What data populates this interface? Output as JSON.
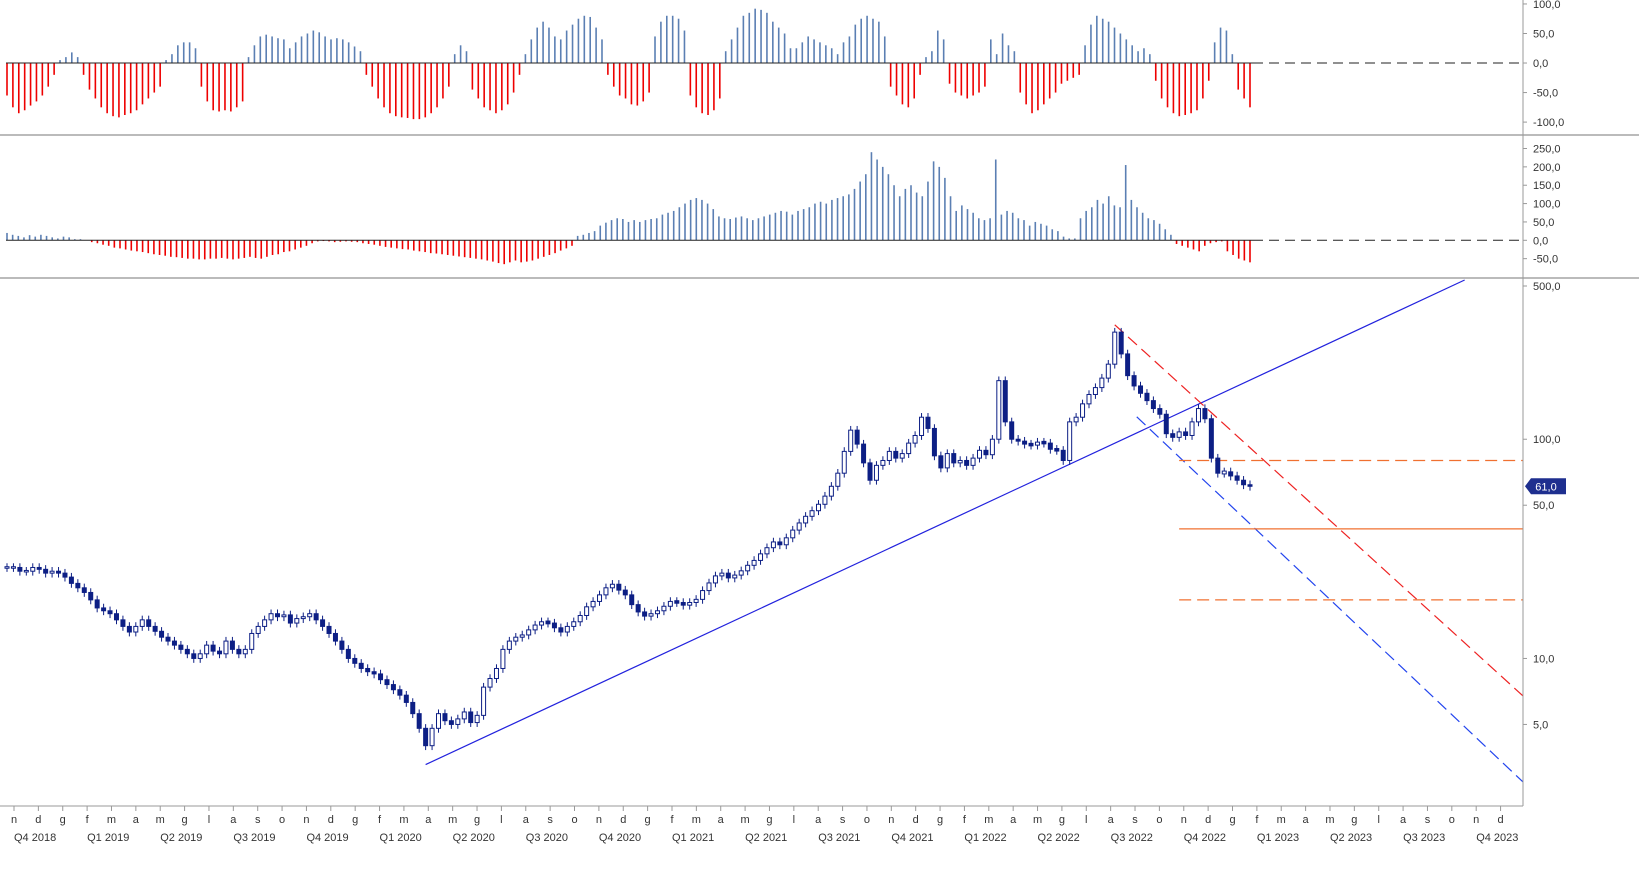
{
  "chart_data": [
    {
      "type": "bar",
      "panel": "oscillator-top",
      "y_ticks": [
        "100,0",
        "50,0",
        "0,0",
        "-50,0",
        "-100,0"
      ],
      "y_tick_values": [
        100,
        50,
        0,
        -50,
        -100
      ],
      "ylim": [
        -110,
        105
      ],
      "colors": {
        "positive": "#5b7fb3",
        "negative": "#ee0000"
      },
      "values": [
        -55,
        -75,
        -85,
        -80,
        -72,
        -65,
        -55,
        -40,
        -20,
        5,
        10,
        18,
        10,
        -20,
        -45,
        -60,
        -75,
        -85,
        -90,
        -92,
        -88,
        -85,
        -80,
        -70,
        -60,
        -50,
        -40,
        5,
        15,
        30,
        35,
        35,
        25,
        -40,
        -65,
        -80,
        -82,
        -80,
        -82,
        -75,
        -65,
        10,
        30,
        45,
        48,
        45,
        42,
        40,
        25,
        35,
        45,
        50,
        55,
        52,
        45,
        40,
        42,
        40,
        35,
        28,
        20,
        -20,
        -40,
        -60,
        -75,
        -85,
        -90,
        -92,
        -93,
        -95,
        -95,
        -92,
        -85,
        -75,
        -60,
        -40,
        15,
        30,
        20,
        -45,
        -60,
        -75,
        -80,
        -85,
        -80,
        -70,
        -50,
        -20,
        15,
        40,
        60,
        70,
        60,
        45,
        40,
        55,
        65,
        75,
        80,
        78,
        60,
        40,
        -20,
        -40,
        -55,
        -60,
        -70,
        -72,
        -65,
        -50,
        45,
        70,
        80,
        80,
        75,
        55,
        -55,
        -75,
        -85,
        -88,
        -80,
        -60,
        20,
        40,
        60,
        80,
        85,
        92,
        90,
        85,
        70,
        60,
        50,
        25,
        25,
        35,
        45,
        40,
        35,
        30,
        25,
        15,
        35,
        45,
        65,
        75,
        80,
        75,
        70,
        45,
        -40,
        -55,
        -70,
        -75,
        -60,
        -20,
        10,
        20,
        55,
        40,
        -35,
        -50,
        -55,
        -60,
        -55,
        -50,
        -40,
        40,
        15,
        50,
        30,
        20,
        -50,
        -70,
        -85,
        -80,
        -70,
        -60,
        -50,
        -35,
        -30,
        -25,
        -20,
        30,
        65,
        80,
        75,
        70,
        60,
        50,
        40,
        30,
        20,
        25,
        15,
        -30,
        -60,
        -75,
        -85,
        -90,
        -88,
        -85,
        -80,
        -60,
        -30,
        35,
        60,
        55,
        15,
        -45,
        -60,
        -75
      ],
      "reference_line": 0
    },
    {
      "type": "bar",
      "panel": "oscillator-middle",
      "y_ticks": [
        "250,0",
        "200,0",
        "150,0",
        "100,0",
        "50,0",
        "0,0",
        "-50,0"
      ],
      "y_tick_values": [
        250,
        200,
        150,
        100,
        50,
        0,
        -50
      ],
      "ylim": [
        -70,
        265
      ],
      "colors": {
        "positive": "#5b7fb3",
        "negative": "#ee0000"
      },
      "values": [
        20,
        15,
        12,
        8,
        14,
        10,
        15,
        12,
        8,
        5,
        10,
        8,
        3,
        3,
        0,
        -5,
        -8,
        -12,
        -15,
        -20,
        -22,
        -25,
        -28,
        -30,
        -32,
        -35,
        -38,
        -40,
        -42,
        -45,
        -46,
        -48,
        -50,
        -50,
        -52,
        -52,
        -50,
        -50,
        -48,
        -50,
        -52,
        -50,
        -48,
        -45,
        -48,
        -50,
        -45,
        -40,
        -38,
        -32,
        -30,
        -25,
        -20,
        -15,
        -8,
        -3,
        -2,
        -3,
        -5,
        -4,
        -3,
        -4,
        -5,
        -8,
        -10,
        -12,
        -15,
        -18,
        -20,
        -22,
        -24,
        -25,
        -28,
        -30,
        -32,
        -35,
        -36,
        -38,
        -40,
        -42,
        -44,
        -46,
        -48,
        -50,
        -52,
        -55,
        -58,
        -62,
        -65,
        -60,
        -55,
        -60,
        -58,
        -55,
        -50,
        -45,
        -40,
        -35,
        -28,
        -22,
        -15,
        12,
        15,
        20,
        25,
        40,
        48,
        55,
        60,
        58,
        50,
        55,
        50,
        55,
        58,
        60,
        70,
        75,
        80,
        90,
        100,
        110,
        115,
        110,
        100,
        85,
        65,
        60,
        58,
        62,
        65,
        60,
        55,
        60,
        65,
        70,
        75,
        80,
        78,
        70,
        80,
        85,
        90,
        100,
        105,
        100,
        110,
        115,
        120,
        125,
        140,
        160,
        180,
        240,
        220,
        200,
        180,
        150,
        120,
        140,
        150,
        130,
        120,
        160,
        215,
        200,
        170,
        120,
        80,
        95,
        85,
        75,
        60,
        55,
        60,
        220,
        70,
        80,
        75,
        60,
        55,
        40,
        50,
        45,
        40,
        30,
        25,
        10,
        5,
        5,
        60,
        80,
        90,
        110,
        100,
        120,
        95,
        90,
        205,
        110,
        90,
        75,
        60,
        55,
        45,
        30,
        15,
        -10,
        -15,
        -20,
        -25,
        -30,
        -15,
        -8,
        -5,
        -3,
        -30,
        -40,
        -50,
        -55,
        -60
      ]
    },
    {
      "type": "candlestick",
      "panel": "price",
      "log_scale": true,
      "y_ticks": [
        "500,0",
        "100,0",
        "50,0",
        "10,0",
        "5,0"
      ],
      "y_tick_values": [
        500,
        100,
        50,
        10,
        5
      ],
      "ylim": [
        3.3,
        500
      ],
      "last_price_label": "61,0",
      "colors": {
        "up_candle": "#ffffff",
        "down_candle": "#0d1f85",
        "candle_edge": "#0d1f85",
        "last_price_badge": "#1e2f8f"
      },
      "prices": [
        26,
        26,
        25,
        25,
        26,
        25.5,
        24.5,
        25,
        24.5,
        23.5,
        22,
        21,
        20,
        18.5,
        17,
        16.5,
        16,
        15,
        14,
        13.2,
        14,
        15,
        14,
        13.3,
        12.5,
        12,
        11.5,
        11,
        10.5,
        10,
        10.5,
        11.5,
        10.8,
        10.5,
        12,
        11,
        10.5,
        11,
        13,
        14,
        15,
        16,
        15.5,
        15.8,
        14.5,
        15.2,
        15.5,
        16,
        15,
        14,
        13,
        12,
        11,
        10,
        9.5,
        9,
        8.7,
        8.5,
        8,
        7.6,
        7.2,
        6.8,
        6.3,
        5.6,
        4.8,
        4,
        4.8,
        5.6,
        5.2,
        5,
        5.3,
        5.7,
        5.1,
        5.5,
        7.4,
        8.1,
        9,
        11,
        12,
        12.5,
        12.8,
        13.5,
        14.2,
        14.7,
        14.5,
        13.8,
        13.2,
        14,
        14.7,
        15.7,
        17.2,
        18.2,
        19.5,
        21,
        21.8,
        20.5,
        19.5,
        17.6,
        16.3,
        15.6,
        16,
        16.5,
        17.3,
        18.2,
        18,
        17.5,
        18,
        18.6,
        20.4,
        22.1,
        23.8,
        24.5,
        23.3,
        24,
        25.1,
        26.6,
        28,
        30,
        32,
        34,
        33,
        35.5,
        38.5,
        41.5,
        44.5,
        47.2,
        50.5,
        55,
        61,
        70,
        88,
        110,
        95,
        78,
        65,
        76,
        80,
        88,
        82,
        86,
        96,
        104,
        126,
        112,
        84,
        74,
        86,
        78,
        80,
        76,
        82,
        89,
        85,
        100,
        185,
        120,
        100,
        98,
        95,
        94,
        97,
        96,
        90,
        89,
        80,
        120,
        126,
        145,
        160,
        172,
        190,
        220,
        308,
        245,
        195,
        175,
        162,
        150,
        138,
        130,
        106,
        102,
        108,
        104,
        120,
        138,
        124,
        82,
        70,
        71,
        68,
        65,
        62,
        61
      ],
      "reference_lines": [
        {
          "style": "solid",
          "color": "#2222dd",
          "role": "uptrend"
        },
        {
          "style": "dashed",
          "color": "#ee2222",
          "role": "downtrend-upper"
        },
        {
          "style": "dashed",
          "color": "#2244ee",
          "role": "downtrend-lower"
        },
        {
          "style": "dashed",
          "color": "#f07030",
          "value": 80
        },
        {
          "style": "solid",
          "color": "#f07030",
          "value": 39
        },
        {
          "style": "dashed",
          "color": "#f07030",
          "value": 18.5
        }
      ]
    }
  ],
  "x_axis": {
    "month_letters": [
      "n",
      "d",
      "g",
      "f",
      "m",
      "a",
      "m",
      "g",
      "l",
      "a",
      "s",
      "o",
      "n",
      "d",
      "g",
      "f",
      "m",
      "a",
      "m",
      "g",
      "l",
      "a",
      "s",
      "o",
      "n",
      "d",
      "g",
      "f",
      "m",
      "a",
      "m",
      "g",
      "l",
      "a",
      "s",
      "o",
      "n",
      "d",
      "g",
      "f",
      "m",
      "a",
      "m",
      "g",
      "l",
      "a",
      "s",
      "o",
      "n",
      "d",
      "g",
      "f",
      "m",
      "a",
      "m",
      "g",
      "l",
      "a",
      "s",
      "o",
      "n",
      "d"
    ],
    "quarters": [
      "Q4 2018",
      "Q1 2019",
      "Q2 2019",
      "Q3 2019",
      "Q4 2019",
      "Q1 2020",
      "Q2 2020",
      "Q3 2020",
      "Q4 2020",
      "Q1 2021",
      "Q2 2021",
      "Q3 2021",
      "Q4 2021",
      "Q1 2022",
      "Q2 2022",
      "Q3 2022",
      "Q4 2022",
      "Q1 2023",
      "Q2 2023",
      "Q3 2023",
      "Q4 2023"
    ]
  }
}
